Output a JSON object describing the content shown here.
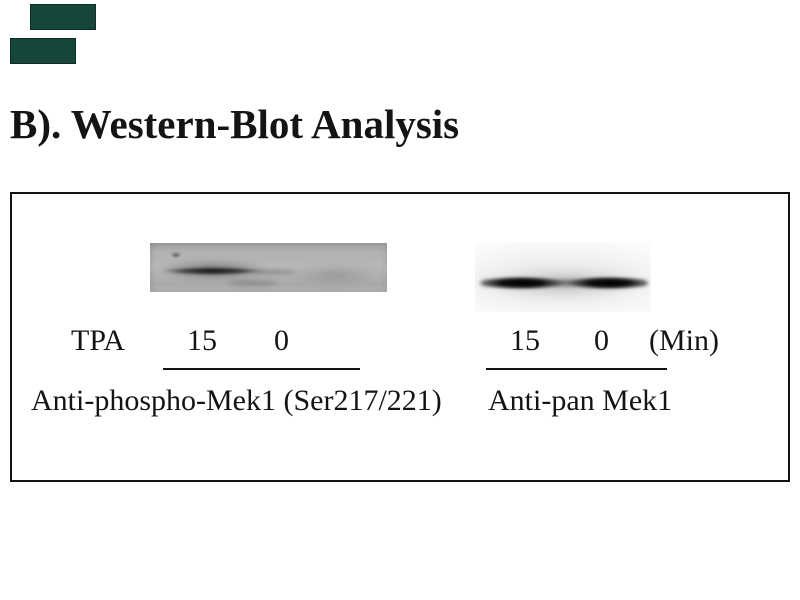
{
  "title": {
    "text": "B). Western-Blot Analysis"
  },
  "watermark": {
    "color": "#16453a",
    "name": "vendor-logo-marks"
  },
  "figure": {
    "treatment_label": "TPA",
    "unit_label": "(Min)",
    "panels": [
      {
        "name": "phospho-mek1",
        "lane_labels": [
          "15",
          "0"
        ],
        "antibody_label": "Anti-phospho-Mek1 (Ser217/221)",
        "band_pattern": "strong band in 15-min lane, faint smear in 0-min lane",
        "blot_background": "#b3b3b3"
      },
      {
        "name": "pan-mek1",
        "lane_labels": [
          "15",
          "0"
        ],
        "antibody_label": "Anti-pan Mek1",
        "band_pattern": "strong dark bands in both lanes",
        "blot_background": "#efefef"
      }
    ]
  },
  "colors": {
    "page_background": "#ffffff",
    "text": "#141414",
    "frame_border": "#141414",
    "band": "#0a0a0a"
  }
}
